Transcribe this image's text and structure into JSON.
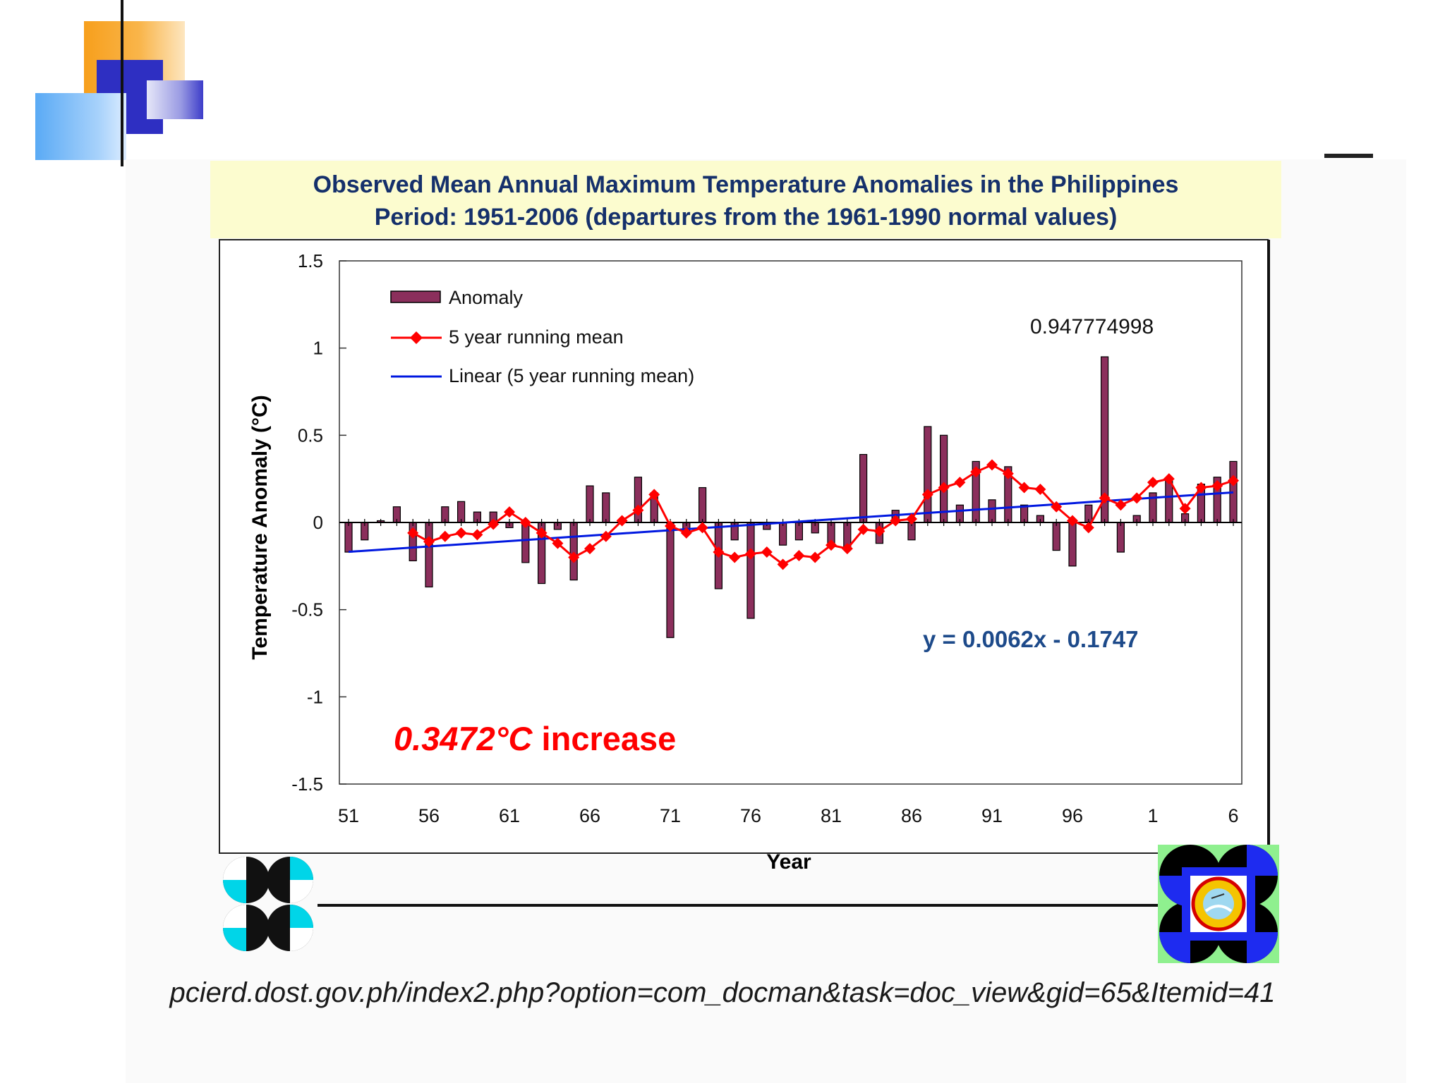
{
  "slide": {
    "title_line1": "Observed Mean Annual Maximum Temperature Anomalies in the Philippines",
    "title_line2": "Period: 1951-2006 (departures from the 1961-1990 normal values)",
    "source": "pcierd.dost.gov.ph/index2.php?option=com_docman&task=doc_view&gid=65&Itemid=41"
  },
  "colors": {
    "bar": "#8b2f5c",
    "running_mean": "#ff0000",
    "trend": "#0018e0",
    "title_text": "#15306b",
    "equation": "#1d4a8a",
    "increase": "#ff0000"
  },
  "chart_data": {
    "type": "bar",
    "xlabel": "Year",
    "ylabel": "Temperature Anomaly (°C)",
    "ylim": [
      -1.5,
      1.5
    ],
    "yticks": [
      1.5,
      1,
      0.5,
      0,
      -0.5,
      -1,
      -1.5
    ],
    "ytick_labels": [
      "1.5",
      "1",
      "0.5",
      "0",
      "-0.5",
      "-1",
      "-1.5"
    ],
    "x_tick_labels": [
      "51",
      "56",
      "61",
      "66",
      "71",
      "76",
      "81",
      "86",
      "91",
      "96",
      "1",
      "6"
    ],
    "x_tick_years": [
      1951,
      1956,
      1961,
      1966,
      1971,
      1976,
      1981,
      1986,
      1991,
      1996,
      2001,
      2006
    ],
    "legend_position": "top-left",
    "grid": false,
    "years": [
      1951,
      1952,
      1953,
      1954,
      1955,
      1956,
      1957,
      1958,
      1959,
      1960,
      1961,
      1962,
      1963,
      1964,
      1965,
      1966,
      1967,
      1968,
      1969,
      1970,
      1971,
      1972,
      1973,
      1974,
      1975,
      1976,
      1977,
      1978,
      1979,
      1980,
      1981,
      1982,
      1983,
      1984,
      1985,
      1986,
      1987,
      1988,
      1989,
      1990,
      1991,
      1992,
      1993,
      1994,
      1995,
      1996,
      1997,
      1998,
      1999,
      2000,
      2001,
      2002,
      2003,
      2004,
      2005,
      2006
    ],
    "series": [
      {
        "name": "Anomaly",
        "kind": "bar",
        "values": [
          -0.17,
          -0.1,
          0.01,
          0.09,
          -0.22,
          -0.37,
          0.09,
          0.12,
          0.06,
          0.06,
          -0.03,
          -0.23,
          -0.35,
          -0.04,
          -0.33,
          0.21,
          0.17,
          0.01,
          0.26,
          0.17,
          -0.66,
          -0.05,
          0.2,
          -0.38,
          -0.1,
          -0.55,
          -0.04,
          -0.13,
          -0.1,
          -0.06,
          -0.12,
          -0.15,
          0.39,
          -0.12,
          0.07,
          -0.1,
          0.55,
          0.5,
          0.1,
          0.35,
          0.13,
          0.32,
          0.1,
          0.04,
          -0.16,
          -0.25,
          0.1,
          0.95,
          -0.17,
          0.04,
          0.17,
          0.24,
          0.05,
          0.22,
          0.26,
          0.35
        ]
      },
      {
        "name": "5 year running mean",
        "kind": "line",
        "years": [
          1955,
          1956,
          1957,
          1958,
          1959,
          1960,
          1961,
          1962,
          1963,
          1964,
          1965,
          1966,
          1967,
          1968,
          1969,
          1970,
          1971,
          1972,
          1973,
          1974,
          1975,
          1976,
          1977,
          1978,
          1979,
          1980,
          1981,
          1982,
          1983,
          1984,
          1985,
          1986,
          1987,
          1988,
          1989,
          1990,
          1991,
          1992,
          1993,
          1994,
          1995,
          1996,
          1997,
          1998,
          1999,
          2000,
          2001,
          2002,
          2003,
          2004,
          2005,
          2006
        ],
        "values": [
          -0.06,
          -0.11,
          -0.08,
          -0.06,
          -0.07,
          -0.01,
          0.06,
          0.0,
          -0.06,
          -0.12,
          -0.2,
          -0.15,
          -0.08,
          0.01,
          0.07,
          0.16,
          -0.02,
          -0.06,
          -0.03,
          -0.17,
          -0.2,
          -0.18,
          -0.17,
          -0.24,
          -0.19,
          -0.2,
          -0.13,
          -0.15,
          -0.04,
          -0.05,
          0.01,
          0.02,
          0.16,
          0.2,
          0.23,
          0.29,
          0.33,
          0.28,
          0.2,
          0.19,
          0.09,
          0.01,
          -0.03,
          0.14,
          0.1,
          0.14,
          0.23,
          0.25,
          0.08,
          0.2,
          0.21,
          0.24
        ]
      },
      {
        "name": "Linear (5 year running mean)",
        "kind": "trend",
        "slope": 0.0062,
        "intercept": -0.1747
      }
    ],
    "annotations": {
      "max_value": "0.947774998",
      "equation": "y = 0.0062x - 0.1747",
      "increase": "0.3472°C increase"
    }
  }
}
